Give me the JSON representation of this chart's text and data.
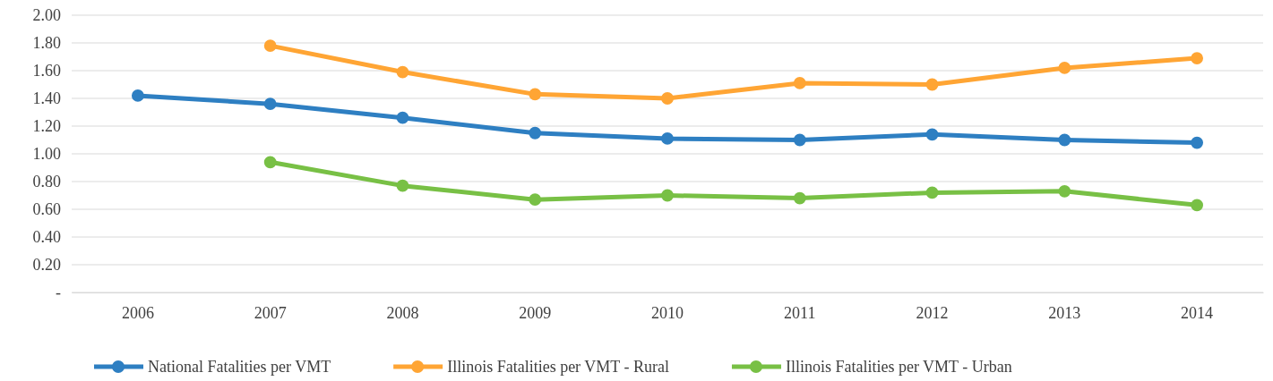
{
  "chart_data": {
    "type": "line",
    "categories": [
      "2006",
      "2007",
      "2008",
      "2009",
      "2010",
      "2011",
      "2012",
      "2013",
      "2014"
    ],
    "series": [
      {
        "name": "National Fatalities per VMT",
        "color": "#2e7fc2",
        "values": [
          1.42,
          1.36,
          1.26,
          1.15,
          1.11,
          1.1,
          1.14,
          1.1,
          1.08
        ]
      },
      {
        "name": "Illinois Fatalities per VMT - Rural",
        "color": "#ffa534",
        "values": [
          null,
          1.78,
          1.59,
          1.43,
          1.4,
          1.51,
          1.5,
          1.62,
          1.69
        ]
      },
      {
        "name": "Illinois Fatalities per VMT - Urban",
        "color": "#78c045",
        "values": [
          null,
          0.94,
          0.77,
          0.67,
          0.7,
          0.68,
          0.72,
          0.73,
          0.63
        ]
      }
    ],
    "ylim": [
      0,
      2
    ],
    "yticks": [
      {
        "value": 0,
        "label": "-"
      },
      {
        "value": 0.2,
        "label": "0.20"
      },
      {
        "value": 0.4,
        "label": "0.40"
      },
      {
        "value": 0.6,
        "label": "0.60"
      },
      {
        "value": 0.8,
        "label": "0.80"
      },
      {
        "value": 1,
        "label": "1.00"
      },
      {
        "value": 1.2,
        "label": "1.20"
      },
      {
        "value": 1.4,
        "label": "1.40"
      },
      {
        "value": 1.6,
        "label": "1.60"
      },
      {
        "value": 1.8,
        "label": "1.80"
      },
      {
        "value": 2,
        "label": "2.00"
      }
    ],
    "grid": "y",
    "legend": "bottom",
    "marker": "circle",
    "line_style": "solid"
  }
}
